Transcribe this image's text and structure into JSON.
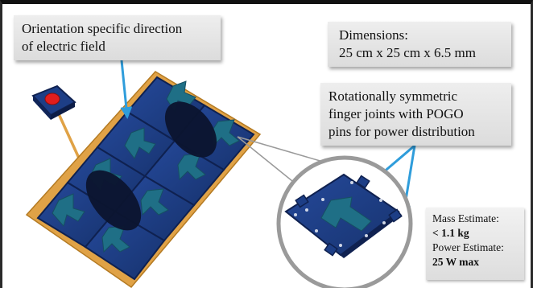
{
  "callouts": {
    "orientation": {
      "line1": "Orientation specific direction",
      "line2": "of electric field"
    },
    "dimensions": {
      "line1": "Dimensions:",
      "line2": "25 cm x 25 cm x 6.5 mm"
    },
    "joints": {
      "line1": "Rotationally symmetric",
      "line2": "finger joints with POGO",
      "line3": "pins for power distribution"
    }
  },
  "estimates": {
    "mass_label": "Mass Estimate:",
    "mass_value": "< 1.1 kg",
    "power_label": "Power Estimate:",
    "power_value": "25 W max"
  },
  "colors": {
    "tile_blue": "#1d3e86",
    "tile_edge": "#0f2150",
    "arrow_teal": "#1f6f86",
    "frame_orange": "#e0a246",
    "ellipse_dark": "#0b1530",
    "callout_arrow": "#2f9ddb",
    "button_red": "#e11d1d",
    "lens_circle": "#9a9a9a"
  },
  "icons": {
    "power_button": "red-button-icon"
  }
}
